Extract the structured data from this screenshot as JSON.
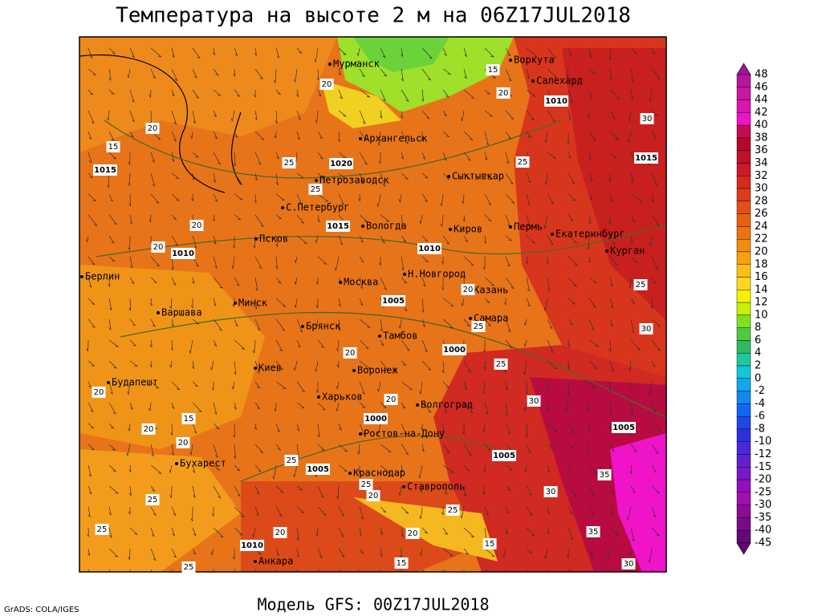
{
  "header": {
    "title": "Температура на высоте 2 м на 06Z17JUL2018"
  },
  "footer": {
    "model": "Модель GFS: 00Z17JUL2018",
    "credit": "GrADS: COLA/IGES"
  },
  "cities": [
    "Мурманск",
    "Архангельск",
    "Воркута",
    "Салехард",
    "Петрозаводск",
    "Сыктывкар",
    "С.Петербург",
    "Вологда",
    "Киров",
    "Пермь",
    "Екатеринбург",
    "Курган",
    "Псков",
    "Н.Новгород",
    "Казань",
    "Москва",
    "Берлин",
    "Варшава",
    "Минск",
    "Брянск",
    "Тамбов",
    "Самара",
    "Киев",
    "Воронеж",
    "Харьков",
    "Волгоград",
    "Будапешт",
    "Ростов-на-Дону",
    "Бухарест",
    "Краснодар",
    "Ставрополь",
    "Анкара"
  ],
  "contour_labels": [
    1015,
    1020,
    1015,
    1010,
    1010,
    1005,
    1000,
    1000,
    1005,
    1005,
    1005,
    1010,
    1015,
    1010,
    20,
    15,
    20,
    25,
    25,
    20,
    20,
    25,
    30,
    20,
    15,
    25,
    30,
    25,
    30,
    35,
    35,
    30,
    25,
    20,
    15,
    20,
    20,
    20,
    20,
    25,
    25,
    20,
    25,
    20,
    15,
    20,
    25,
    25,
    15,
    30,
    20,
    25
  ],
  "colorbar": {
    "labels": [
      48,
      46,
      44,
      42,
      40,
      38,
      36,
      34,
      32,
      30,
      28,
      26,
      24,
      22,
      20,
      18,
      16,
      14,
      12,
      10,
      8,
      6,
      4,
      2,
      0,
      -2,
      -4,
      -6,
      -8,
      -10,
      -12,
      -15,
      -20,
      -25,
      -30,
      -35,
      -40,
      -45
    ],
    "colors": [
      "#a0149a",
      "#b4169c",
      "#c8189e",
      "#dc14b0",
      "#f014c8",
      "#c80a50",
      "#b40a28",
      "#c0102a",
      "#cc1a28",
      "#d42a20",
      "#dc3c1c",
      "#e44e18",
      "#ea6010",
      "#ee7410",
      "#f48a10",
      "#f8a010",
      "#fac018",
      "#fcd820",
      "#f8f000",
      "#c8f000",
      "#80e020",
      "#50c840",
      "#30b860",
      "#20c8a0",
      "#10c8d8",
      "#10a8e8",
      "#1088f0",
      "#1068f0",
      "#2048e8",
      "#3030e0",
      "#4828d8",
      "#6020d0",
      "#7818c8",
      "#9010c0",
      "#a010b0",
      "#8c0c98",
      "#780a88",
      "#640878"
    ]
  }
}
